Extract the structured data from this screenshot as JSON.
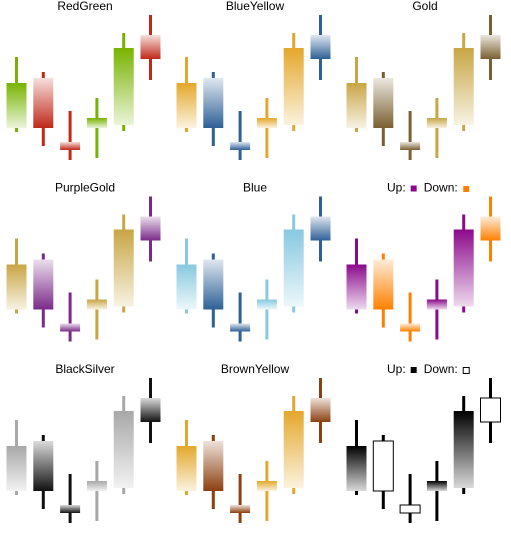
{
  "chart_data": [
    {
      "type": "candlestick",
      "title": "RedGreen",
      "up_color": "#77b300",
      "down_color": "#c0281a",
      "open": [
        42,
        92,
        28,
        42,
        45,
        135
      ],
      "high": [
        113,
        98,
        59,
        72,
        137,
        155
      ],
      "low": [
        38,
        24,
        10,
        12,
        39,
        90
      ],
      "close": [
        87,
        42,
        20,
        52,
        122,
        111
      ]
    },
    {
      "type": "candlestick",
      "title": "BlueYellow",
      "up_color": "#e3a82b",
      "down_color": "#2e6096",
      "open": [
        42,
        92,
        28,
        42,
        45,
        135
      ],
      "high": [
        113,
        98,
        59,
        72,
        137,
        155
      ],
      "low": [
        38,
        24,
        10,
        12,
        39,
        90
      ],
      "close": [
        87,
        42,
        20,
        52,
        122,
        111
      ]
    },
    {
      "type": "candlestick",
      "title": "Gold",
      "up_color": "#c8a545",
      "down_color": "#7a5f30",
      "open": [
        42,
        92,
        28,
        42,
        45,
        135
      ],
      "high": [
        113,
        98,
        59,
        72,
        137,
        155
      ],
      "low": [
        38,
        24,
        10,
        12,
        39,
        90
      ],
      "close": [
        87,
        42,
        20,
        52,
        122,
        111
      ]
    },
    {
      "type": "candlestick",
      "title": "PurpleGold",
      "up_color": "#c8a545",
      "down_color": "#7a2a88",
      "open": [
        42,
        92,
        28,
        42,
        45,
        135
      ],
      "high": [
        113,
        98,
        59,
        72,
        137,
        155
      ],
      "low": [
        38,
        24,
        10,
        12,
        39,
        90
      ],
      "close": [
        87,
        42,
        20,
        52,
        122,
        111
      ]
    },
    {
      "type": "candlestick",
      "title": "Blue",
      "up_color": "#88c8e0",
      "down_color": "#2e6096",
      "open": [
        42,
        92,
        28,
        42,
        45,
        135
      ],
      "high": [
        113,
        98,
        59,
        72,
        137,
        155
      ],
      "low": [
        38,
        24,
        10,
        12,
        39,
        90
      ],
      "close": [
        87,
        42,
        20,
        52,
        122,
        111
      ]
    },
    {
      "type": "candlestick",
      "legend": {
        "up": "Up:",
        "down": "Down:"
      },
      "up_color": "#8b0a8b",
      "down_color": "#ff8000",
      "open": [
        42,
        92,
        28,
        42,
        45,
        135
      ],
      "high": [
        113,
        98,
        59,
        72,
        137,
        155
      ],
      "low": [
        38,
        24,
        10,
        12,
        39,
        90
      ],
      "close": [
        87,
        42,
        20,
        52,
        122,
        111
      ]
    },
    {
      "type": "candlestick",
      "title": "BlackSilver",
      "up_color": "#a8a8a8",
      "down_color": "#111111",
      "open": [
        42,
        92,
        28,
        42,
        45,
        135
      ],
      "high": [
        113,
        98,
        59,
        72,
        137,
        155
      ],
      "low": [
        38,
        24,
        10,
        12,
        39,
        90
      ],
      "close": [
        87,
        42,
        20,
        52,
        122,
        111
      ]
    },
    {
      "type": "candlestick",
      "title": "BrownYellow",
      "up_color": "#e3a82b",
      "down_color": "#8b4010",
      "open": [
        42,
        92,
        28,
        42,
        45,
        135
      ],
      "high": [
        113,
        98,
        59,
        72,
        137,
        155
      ],
      "low": [
        38,
        24,
        10,
        12,
        39,
        90
      ],
      "close": [
        87,
        42,
        20,
        52,
        122,
        111
      ]
    },
    {
      "type": "candlestick",
      "legend": {
        "up": "Up:",
        "down": "Down:"
      },
      "up_color": "#000000",
      "down_color": "#000000",
      "down_hollow": true,
      "open": [
        42,
        92,
        28,
        42,
        45,
        135
      ],
      "high": [
        113,
        98,
        59,
        72,
        137,
        155
      ],
      "low": [
        38,
        24,
        10,
        12,
        39,
        90
      ],
      "close": [
        87,
        42,
        20,
        52,
        122,
        111
      ]
    }
  ]
}
